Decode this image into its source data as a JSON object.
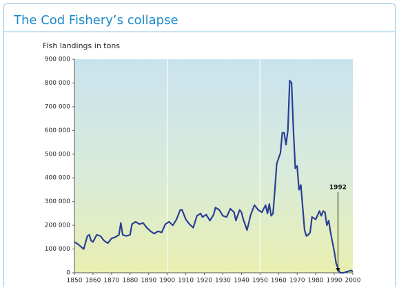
{
  "chart_data": {
    "type": "line",
    "title": "The Cod Fishery’s collapse",
    "subtitle": "Fish landings in tons",
    "x": [
      1850,
      1852,
      1855,
      1857,
      1858,
      1859,
      1860,
      1862,
      1864,
      1866,
      1868,
      1870,
      1872,
      1874,
      1875,
      1876,
      1878,
      1880,
      1881,
      1883,
      1885,
      1887,
      1889,
      1891,
      1893,
      1895,
      1897,
      1899,
      1901,
      1903,
      1905,
      1907,
      1908,
      1910,
      1912,
      1914,
      1916,
      1918,
      1919,
      1921,
      1923,
      1925,
      1926,
      1928,
      1930,
      1932,
      1934,
      1936,
      1937,
      1939,
      1940,
      1941,
      1943,
      1945,
      1947,
      1949,
      1951,
      1953,
      1954,
      1955,
      1956,
      1957,
      1958,
      1959,
      1961,
      1962,
      1963,
      1964,
      1965,
      1966,
      1967,
      1968,
      1969,
      1970,
      1971,
      1972,
      1974,
      1975,
      1976,
      1977,
      1978,
      1980,
      1982,
      1983,
      1984,
      1985,
      1986,
      1987,
      1988,
      1989,
      1990,
      1991,
      1992,
      1993,
      1995,
      1997,
      1999,
      2000
    ],
    "series": [
      {
        "color": "#2a3f95",
        "values": [
          130000,
          120000,
          100000,
          155000,
          160000,
          135000,
          130000,
          160000,
          155000,
          135000,
          125000,
          145000,
          150000,
          160000,
          210000,
          160000,
          155000,
          160000,
          205000,
          215000,
          205000,
          210000,
          190000,
          175000,
          165000,
          175000,
          170000,
          205000,
          215000,
          200000,
          225000,
          265000,
          265000,
          225000,
          205000,
          190000,
          240000,
          250000,
          235000,
          245000,
          220000,
          245000,
          275000,
          265000,
          240000,
          235000,
          270000,
          255000,
          220000,
          265000,
          255000,
          225000,
          180000,
          245000,
          285000,
          265000,
          255000,
          285000,
          250000,
          290000,
          240000,
          250000,
          350000,
          460000,
          505000,
          590000,
          590000,
          540000,
          600000,
          810000,
          800000,
          600000,
          440000,
          450000,
          350000,
          370000,
          180000,
          155000,
          160000,
          170000,
          235000,
          225000,
          260000,
          240000,
          260000,
          255000,
          200000,
          220000,
          170000,
          130000,
          90000,
          40000,
          20000,
          0,
          0,
          5000,
          10000,
          5000
        ]
      }
    ],
    "xlim": [
      1850,
      2000
    ],
    "xticks": [
      1850,
      1860,
      1870,
      1880,
      1890,
      1900,
      1910,
      1920,
      1930,
      1940,
      1950,
      1960,
      1970,
      1980,
      1990,
      2000
    ],
    "x_gridlines": [
      1900,
      1950
    ],
    "ylim": [
      0,
      900000
    ],
    "yticks": [
      0,
      {
        "value": 100000,
        "label": "100 000"
      },
      {
        "value": 200000,
        "label": "200 000"
      },
      {
        "value": 300000,
        "label": "300 000"
      },
      {
        "value": 400000,
        "label": "400 000"
      },
      {
        "value": 500000,
        "label": "500 000"
      },
      {
        "value": 600000,
        "label": "600 000"
      },
      {
        "value": 700000,
        "label": "700 000"
      },
      {
        "value": 800000,
        "label": "800 000"
      },
      {
        "value": 900000,
        "label": "900 000"
      }
    ],
    "annotations": [
      {
        "text": "1992",
        "x": 1992
      }
    ]
  }
}
